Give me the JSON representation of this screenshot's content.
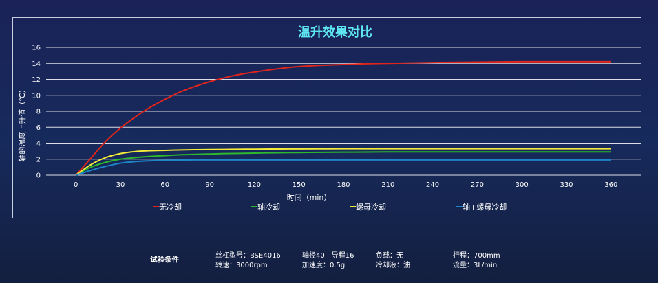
{
  "chart_data": {
    "type": "line",
    "title": "温升效果对比",
    "xlabel": "时间（min）",
    "ylabel": "轴的温度上升值（℃）",
    "xlim": [
      -20,
      380
    ],
    "ylim": [
      0,
      16
    ],
    "x_ticks": [
      0,
      30,
      60,
      90,
      120,
      150,
      180,
      210,
      240,
      270,
      300,
      330,
      360
    ],
    "y_ticks": [
      0,
      2,
      4,
      6,
      8,
      10,
      12,
      14,
      16
    ],
    "grid": "horizontal",
    "legend": "bottom",
    "x": [
      0,
      10,
      20,
      30,
      40,
      50,
      60,
      70,
      80,
      90,
      100,
      110,
      120,
      135,
      150,
      165,
      180,
      195,
      210,
      225,
      240,
      270,
      300,
      330,
      360
    ],
    "series": [
      {
        "name": "无冷却",
        "color": "#e0251c",
        "values": [
          0,
          2.1,
          4.2,
          5.9,
          7.3,
          8.5,
          9.5,
          10.4,
          11.1,
          11.7,
          12.2,
          12.6,
          12.9,
          13.3,
          13.6,
          13.75,
          13.85,
          13.95,
          14.0,
          14.05,
          14.1,
          14.15,
          14.2,
          14.2,
          14.2
        ]
      },
      {
        "name": "轴冷却",
        "color": "#2db82d",
        "values": [
          0,
          1.0,
          1.6,
          2.0,
          2.2,
          2.35,
          2.45,
          2.55,
          2.6,
          2.65,
          2.7,
          2.72,
          2.75,
          2.8,
          2.82,
          2.85,
          2.87,
          2.88,
          2.9,
          2.9,
          2.9,
          2.9,
          2.9,
          2.9,
          2.9
        ]
      },
      {
        "name": "螺母冷却",
        "color": "#f3ea3a",
        "values": [
          0,
          1.3,
          2.2,
          2.7,
          2.95,
          3.05,
          3.1,
          3.15,
          3.18,
          3.2,
          3.22,
          3.24,
          3.25,
          3.27,
          3.28,
          3.29,
          3.3,
          3.3,
          3.3,
          3.3,
          3.3,
          3.3,
          3.3,
          3.3,
          3.3
        ]
      },
      {
        "name": "轴+螺母冷却",
        "color": "#1e86c8",
        "values": [
          0,
          0.6,
          1.1,
          1.5,
          1.7,
          1.8,
          1.85,
          1.88,
          1.9,
          1.9,
          1.9,
          1.9,
          1.9,
          1.9,
          1.9,
          1.9,
          1.9,
          1.9,
          1.9,
          1.9,
          1.9,
          1.9,
          1.9,
          1.9,
          1.9
        ]
      }
    ]
  },
  "conditions": {
    "title": "试验条件",
    "model": "丝杠型号：BSE4016",
    "speed": "转速：3000rpm",
    "diameter_lead": "轴径40　导程16",
    "accel": "加速度：0.5g",
    "load": "负载：无",
    "coolant": "冷却液：油",
    "stroke": "行程：700mm",
    "flow": "流量：3L/min"
  }
}
